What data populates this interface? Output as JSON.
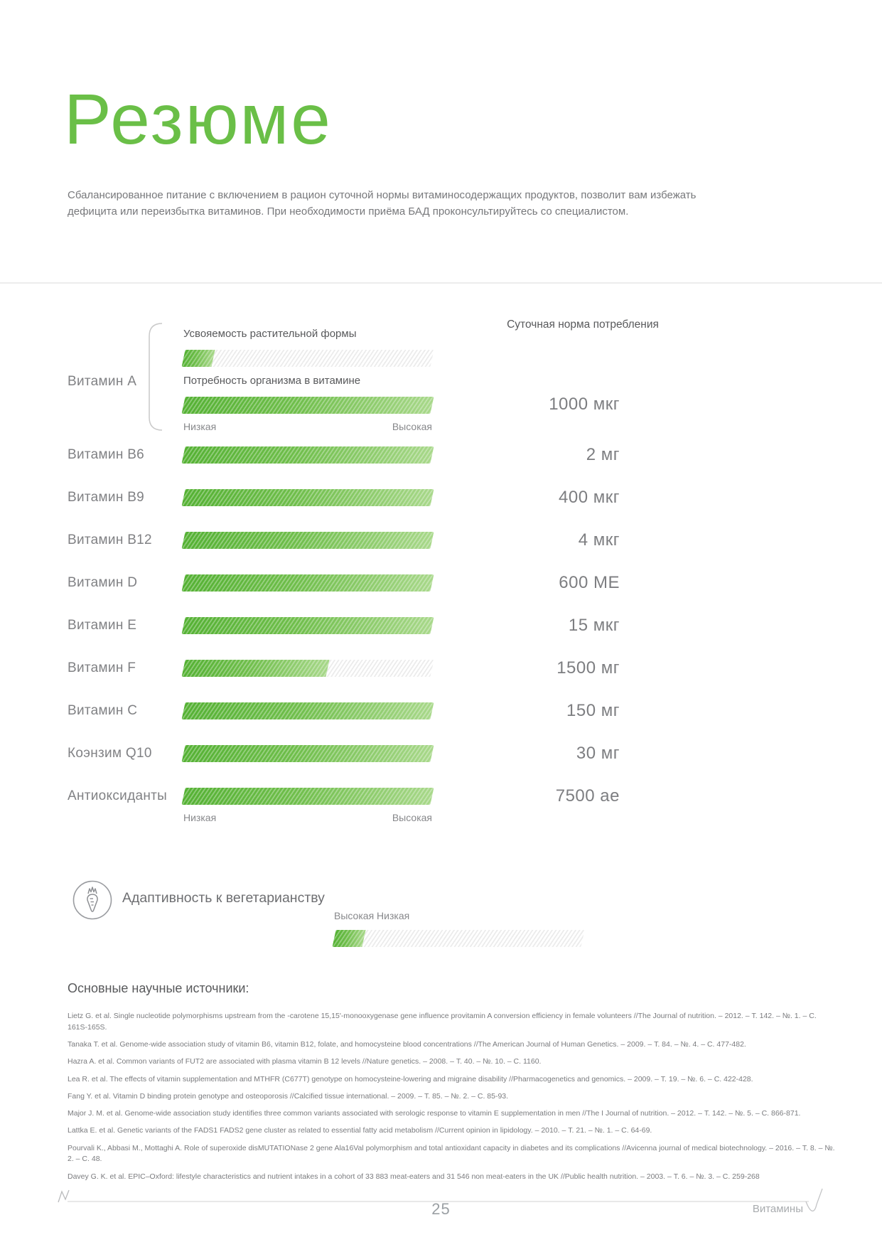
{
  "page": {
    "title": "Резюме",
    "intro": "Сбалансированное питание с включением в рацион суточной нормы витаминосодержащих продуктов, позволит вам избежать дефицита или переизбытка витаминов. При необходимости приёма БАД проконсультируйтесь со специалистом.",
    "footer": {
      "page_number": "25",
      "section": "Витамины"
    }
  },
  "chart_data": {
    "type": "bar",
    "title": "",
    "daily_norm_header": "Суточная норма потребления",
    "absorption_label": "Усвояемость растительной формы",
    "need_label": "Потребность организма в витамине",
    "scale_low": "Низкая",
    "scale_high": "Высокая",
    "accent_color": "#6abf47",
    "bar_green_dark": "#54b133",
    "bar_green_light": "#a8d88a",
    "xlim_pct": [
      0,
      100
    ],
    "rows": [
      {
        "label": "Витамин A",
        "absorption_pct": 12,
        "need_pct": 100,
        "daily_norm": "1000 мкг"
      },
      {
        "label": "Витамин B6",
        "need_pct": 100,
        "daily_norm": "2 мг"
      },
      {
        "label": "Витамин B9",
        "need_pct": 100,
        "daily_norm": "400 мкг"
      },
      {
        "label": "Витамин B12",
        "need_pct": 100,
        "daily_norm": "4 мкг"
      },
      {
        "label": "Витамин D",
        "need_pct": 100,
        "daily_norm": "600 МЕ"
      },
      {
        "label": "Витамин E",
        "need_pct": 100,
        "daily_norm": "15 мкг"
      },
      {
        "label": "Витамин F",
        "need_pct": 58,
        "daily_norm": "1500 мг"
      },
      {
        "label": "Витамин C",
        "need_pct": 100,
        "daily_norm": "150 мг"
      },
      {
        "label": "Коэнзим Q10",
        "need_pct": 100,
        "daily_norm": "30 мг"
      },
      {
        "label": "Антиоксиданты",
        "need_pct": 100,
        "daily_norm": "7500 ае"
      }
    ]
  },
  "adaptivity": {
    "heading": "Адаптивность к вегетарианству",
    "icon": "carrot-icon",
    "scale_low": "Низкая",
    "scale_high": "Высокая",
    "value_pct": 12
  },
  "sources": {
    "heading": "Основные научные источники:",
    "items": [
      "Lietz G. et al. Single nucleotide polymorphisms upstream from the -carotene 15,15'-monooxygenase gene influence provitamin A conversion efficiency in female volunteers //The Journal of nutrition. – 2012. – Т. 142. – №. 1. – С. 161S-165S.",
      "Tanaka T. et al. Genome-wide association study of vitamin B6, vitamin B12, folate, and homocysteine blood concentrations //The American Journal of Human Genetics. – 2009. – Т. 84. – №. 4. – С. 477-482.",
      "Hazra A. et al. Common variants of FUT2 are associated with plasma vitamin B 12 levels //Nature genetics. – 2008. – Т. 40. – №. 10. – С. 1160.",
      "Lea R. et al. The effects of vitamin supplementation and MTHFR (C677T) genotype on homocysteine-lowering and migraine disability //Pharmacogenetics and genomics. – 2009. – Т. 19. – №. 6. – С. 422-428.",
      "Fang Y. et al. Vitamin D binding protein genotype and osteoporosis //Calcified tissue international. – 2009. – Т. 85. – №. 2. – С. 85-93.",
      "Major J. M. et al. Genome-wide association study identifies three common variants associated with serologic response to vitamin E supplementation in men //The I Journal of nutrition. – 2012. – Т. 142. – №. 5. – С.  866-871.",
      "Lattka E. et al. Genetic variants of the FADS1 FADS2 gene cluster as related to essential fatty acid metabolism //Current opinion in lipidology. – 2010. – Т. 21. – №. 1. – С. 64-69.",
      "Pourvali K., Abbasi M., Mottaghi A. Role of superoxide disMUTATIONase 2 gene Ala16Val polymorphism and total antioxidant capacity in diabetes and its complications //Avicenna journal of medical biotechnology. – 2016. – Т. 8. – №. 2. – С. 48.",
      "Davey G. K. et al. EPIC–Oxford: lifestyle characteristics and nutrient intakes in a cohort of 33 883 meat-eaters and 31 546 non meat-eaters in the UK //Public health nutrition. – 2003. – Т. 6. – №. 3. – С. 259-268"
    ]
  }
}
